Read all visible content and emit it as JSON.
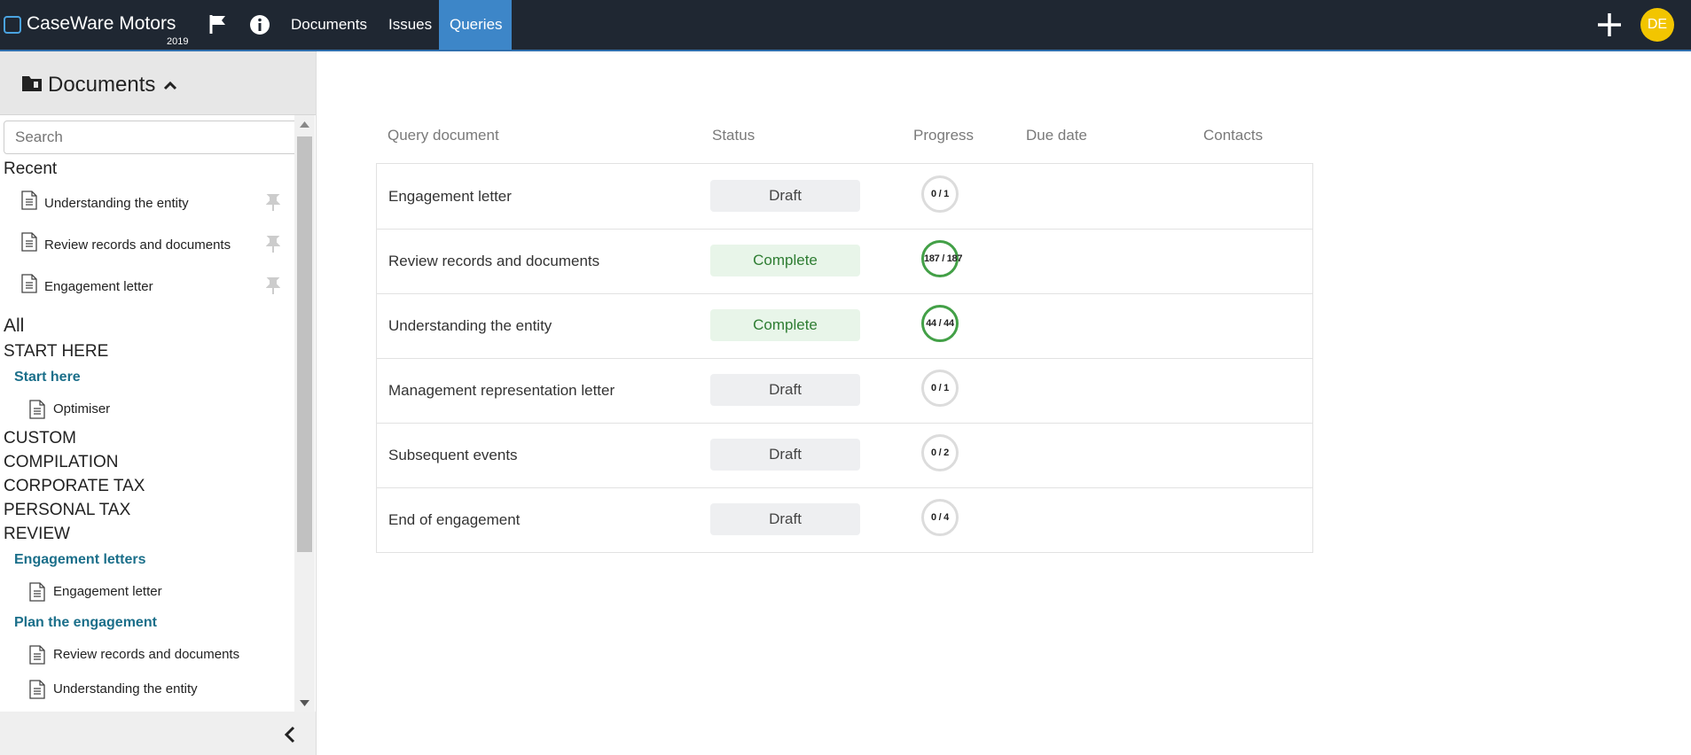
{
  "header": {
    "app_name": "CaseWare Motors",
    "year": "2019",
    "nav": [
      "Documents",
      "Issues",
      "Queries"
    ],
    "active_nav": 2,
    "avatar": "DE"
  },
  "sidebar": {
    "title": "Documents",
    "search_placeholder": "Search",
    "recent_heading": "Recent",
    "recent": [
      "Understanding the entity",
      "Review records and documents",
      "Engagement letter"
    ],
    "all_heading": "All",
    "tree": [
      {
        "label": "START HERE",
        "type": "section"
      },
      {
        "label": "Start here",
        "type": "folder"
      },
      {
        "label": "Optimiser",
        "type": "doc"
      },
      {
        "label": "CUSTOM",
        "type": "section"
      },
      {
        "label": "COMPILATION",
        "type": "section"
      },
      {
        "label": "CORPORATE TAX",
        "type": "section"
      },
      {
        "label": "PERSONAL TAX",
        "type": "section"
      },
      {
        "label": "REVIEW",
        "type": "section"
      },
      {
        "label": "Engagement letters",
        "type": "folder"
      },
      {
        "label": "Engagement letter",
        "type": "doc"
      },
      {
        "label": "Plan the engagement",
        "type": "folder"
      },
      {
        "label": "Review records and documents",
        "type": "doc"
      },
      {
        "label": "Understanding the entity",
        "type": "doc"
      }
    ]
  },
  "table": {
    "columns": [
      "Query document",
      "Status",
      "Progress",
      "Due date",
      "Contacts"
    ],
    "rows": [
      {
        "name": "Engagement letter",
        "status": "Draft",
        "progress": "0 / 1",
        "complete": false
      },
      {
        "name": "Review records and documents",
        "status": "Complete",
        "progress": "187 / 187",
        "complete": true
      },
      {
        "name": "Understanding the entity",
        "status": "Complete",
        "progress": "44 / 44",
        "complete": true
      },
      {
        "name": "Management representation letter",
        "status": "Draft",
        "progress": "0 / 1",
        "complete": false
      },
      {
        "name": "Subsequent events",
        "status": "Draft",
        "progress": "0 / 2",
        "complete": false
      },
      {
        "name": "End of engagement",
        "status": "Draft",
        "progress": "0 / 4",
        "complete": false
      }
    ]
  }
}
